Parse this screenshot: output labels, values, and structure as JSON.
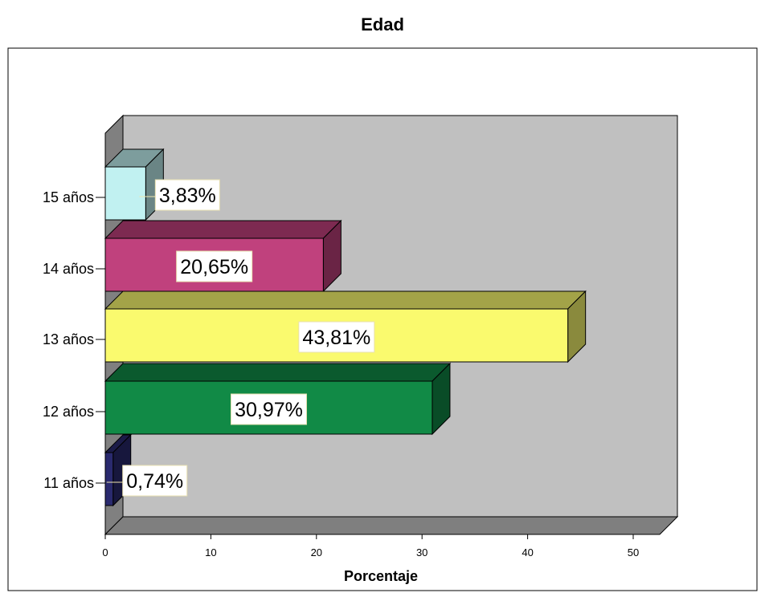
{
  "chart_data": {
    "type": "bar",
    "orientation": "horizontal",
    "three_d": true,
    "title": "Edad",
    "xlabel": "Porcentaje",
    "ylabel": "",
    "categories": [
      "11 años",
      "12 años",
      "13 años",
      "14 años",
      "15 años"
    ],
    "values": [
      0.74,
      30.97,
      43.81,
      20.65,
      3.83
    ],
    "data_labels": [
      "0,74%",
      "30,97%",
      "43,81%",
      "20,65%",
      "3,83%"
    ],
    "xlim": [
      0,
      50
    ],
    "xticks": [
      "0",
      "10",
      "20",
      "30",
      "40",
      "50"
    ],
    "grid": false,
    "legend": "none",
    "colors": {
      "bars": [
        "#2a2a6e",
        "#118a46",
        "#fafa6e",
        "#c0417d",
        "#c1f1f1"
      ],
      "plot_wall": "#c0c0c0",
      "plot_floor": "#7f7f7f"
    }
  }
}
